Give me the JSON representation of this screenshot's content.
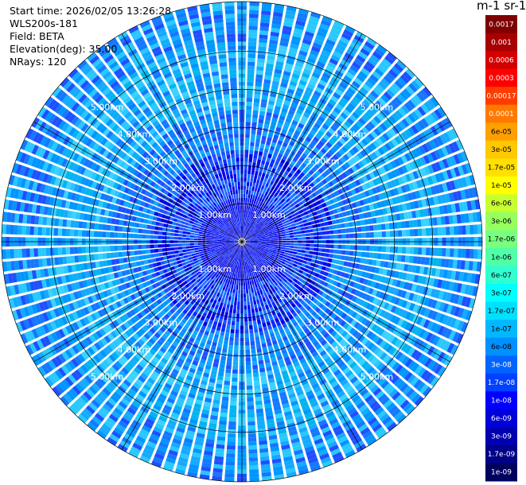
{
  "info": {
    "start_time": "Start time: 2026/02/05 13:26:28",
    "instrument": "WLS200s-181",
    "field": "Field: BETA",
    "elevation": "Elevation(deg): 35.00",
    "nrays": "NRays: 120"
  },
  "colorbar": {
    "title": "m-1 sr-1",
    "labels": [
      "0.0017",
      "0.001",
      "0.0006",
      "0.0003",
      "0.00017",
      "0.0001",
      "6e-05",
      "3e-05",
      "1.7e-05",
      "1e-05",
      "6e-06",
      "3e-06",
      "1.7e-06",
      "1e-06",
      "6e-07",
      "3e-07",
      "1.7e-07",
      "1e-07",
      "6e-08",
      "3e-08",
      "1.7e-08",
      "1e-08",
      "6e-09",
      "3e-09",
      "1.7e-09",
      "1e-09"
    ],
    "colors": [
      "#7f0000",
      "#a80000",
      "#d40000",
      "#ff0000",
      "#ff3c00",
      "#ff7800",
      "#ffa000",
      "#ffc800",
      "#ffe000",
      "#ffff00",
      "#c8ff30",
      "#96ff60",
      "#78ff80",
      "#50ffa8",
      "#30ffd0",
      "#00ffff",
      "#00e0ff",
      "#00b8ff",
      "#0090ff",
      "#0064ff",
      "#0040ff",
      "#0000ff",
      "#0000d8",
      "#0000b0",
      "#000088",
      "#000060"
    ]
  },
  "chart_data": {
    "type": "heatmap",
    "subtype": "polar-ppi",
    "n_rays": 120,
    "elevation_deg": 35.0,
    "range_rings_km": [
      1,
      2,
      3,
      4,
      5
    ],
    "range_ring_labels": [
      "1.00km",
      "2.00km",
      "3.00km",
      "4.00km",
      "5.00km"
    ],
    "max_range_km": 6.3,
    "colorscale": "log",
    "value_range": [
      1e-09,
      0.0017
    ]
  }
}
